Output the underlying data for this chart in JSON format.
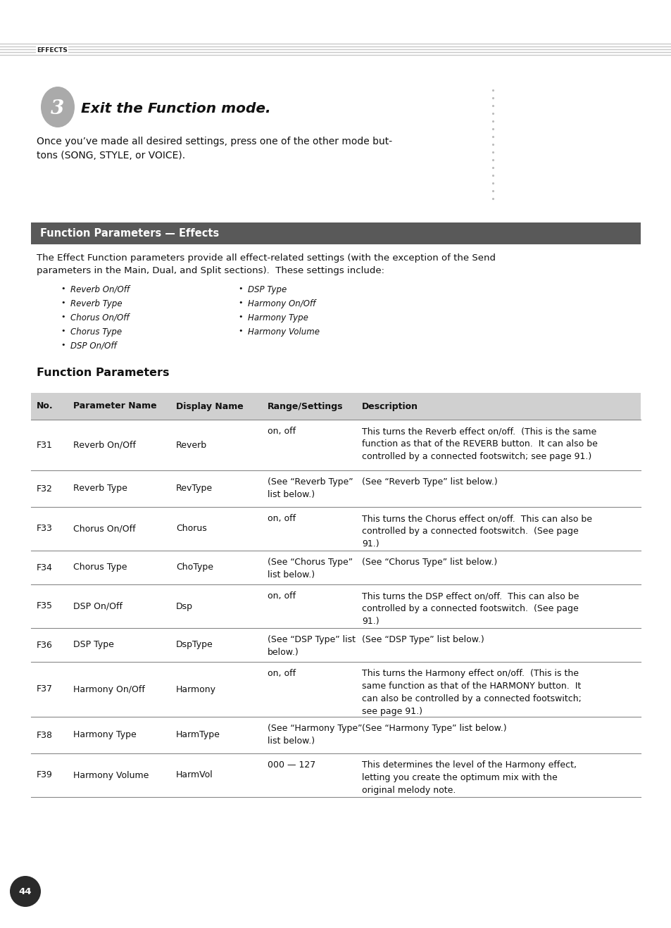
{
  "page_bg": "#ffffff",
  "header_text": "EFFECTS",
  "header_lines_color": "#c8c8c8",
  "step_number": "3",
  "step_title": "Exit the Function mode.",
  "step_body1": "Once you’ve made all desired settings, press one of the other mode but-",
  "step_body2": "tons (SONG, STYLE, or VOICE).",
  "section_header_bg": "#595959",
  "section_header_text": "Function Parameters — Effects",
  "section_header_text_color": "#ffffff",
  "intro_line1": "The Effect Function parameters provide all effect-related settings (with the exception of the Send",
  "intro_line2": "parameters in the Main, Dual, and Split sections).  These settings include:",
  "bullet_col1": [
    "Reverb On/Off",
    "Reverb Type",
    "Chorus On/Off",
    "Chorus Type",
    "DSP On/Off"
  ],
  "bullet_col2": [
    "DSP Type",
    "Harmony On/Off",
    "Harmony Type",
    "Harmony Volume"
  ],
  "function_params_title": "Function Parameters",
  "table_header_bg": "#d0d0d0",
  "table_header_cols": [
    "No.",
    "Parameter Name",
    "Display Name",
    "Range/Settings",
    "Description"
  ],
  "table_row_separator_color": "#888888",
  "table_rows": [
    {
      "no": "F31",
      "param": "Reverb On/Off",
      "display": "Reverb",
      "range": "on, off",
      "desc": "This turns the Reverb effect on/off.  (This is the same\nfunction as that of the REVERB button.  It can also be\ncontrolled by a connected footswitch; see page 91.)"
    },
    {
      "no": "F32",
      "param": "Reverb Type",
      "display": "RevType",
      "range": "(See “Reverb Type”\nlist below.)",
      "desc": "(See “Reverb Type” list below.)"
    },
    {
      "no": "F33",
      "param": "Chorus On/Off",
      "display": "Chorus",
      "range": "on, off",
      "desc": "This turns the Chorus effect on/off.  This can also be\ncontrolled by a connected footswitch.  (See page\n91.)"
    },
    {
      "no": "F34",
      "param": "Chorus Type",
      "display": "ChoType",
      "range": "(See “Chorus Type”\nlist below.)",
      "desc": "(See “Chorus Type” list below.)"
    },
    {
      "no": "F35",
      "param": "DSP On/Off",
      "display": "Dsp",
      "range": "on, off",
      "desc": "This turns the DSP effect on/off.  This can also be\ncontrolled by a connected footswitch.  (See page\n91.)"
    },
    {
      "no": "F36",
      "param": "DSP Type",
      "display": "DspType",
      "range": "(See “DSP Type” list\nbelow.)",
      "desc": "(See “DSP Type” list below.)"
    },
    {
      "no": "F37",
      "param": "Harmony On/Off",
      "display": "Harmony",
      "range": "on, off",
      "desc": "This turns the Harmony effect on/off.  (This is the\nsame function as that of the HARMONY button.  It\ncan also be controlled by a connected footswitch;\nsee page 91.)"
    },
    {
      "no": "F38",
      "param": "Harmony Type",
      "display": "HarmType",
      "range": "(See “Harmony Type”\nlist below.)",
      "desc": "(See “Harmony Type” list below.)"
    },
    {
      "no": "F39",
      "param": "Harmony Volume",
      "display": "HarmVol",
      "range": "000 — 127",
      "desc": "This determines the level of the Harmony effect,\nletting you create the optimum mix with the\noriginal melody note."
    }
  ],
  "page_number": "44"
}
